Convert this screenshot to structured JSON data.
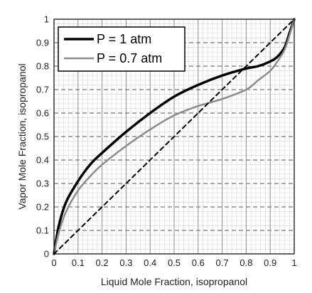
{
  "chart_data": {
    "type": "line",
    "xlabel": "Liquid Mole Fraction, isopropanol",
    "ylabel": "Vapor Mole Fraction, isopropanol",
    "xlim": [
      0,
      1
    ],
    "ylim": [
      0,
      1
    ],
    "x_ticks": [
      "0",
      "0.1",
      "0.2",
      "0.3",
      "0.4",
      "0.5",
      "0.6",
      "0.7",
      "0.8",
      "0.9",
      "1"
    ],
    "y_ticks": [
      "0",
      "0.1",
      "0.2",
      "0.3",
      "0.4",
      "0.5",
      "0.6",
      "0.7",
      "0.8",
      "0.9",
      "1"
    ],
    "grid": true,
    "legend_position": "top-left",
    "series": [
      {
        "name": "P = 1 atm",
        "color": "#000000",
        "x": [
          0,
          0.02,
          0.05,
          0.1,
          0.15,
          0.2,
          0.3,
          0.4,
          0.5,
          0.6,
          0.7,
          0.8,
          0.85,
          0.9,
          0.93,
          0.96,
          0.98,
          1.0
        ],
        "y": [
          0,
          0.12,
          0.22,
          0.31,
          0.38,
          0.43,
          0.52,
          0.6,
          0.67,
          0.72,
          0.76,
          0.79,
          0.8,
          0.82,
          0.84,
          0.88,
          0.94,
          1.0
        ]
      },
      {
        "name": "P = 0.7 atm",
        "color": "#8c8c8c",
        "x": [
          0,
          0.02,
          0.05,
          0.1,
          0.15,
          0.2,
          0.3,
          0.4,
          0.5,
          0.6,
          0.7,
          0.8,
          0.85,
          0.9,
          0.93,
          0.96,
          0.98,
          1.0
        ],
        "y": [
          0,
          0.09,
          0.18,
          0.27,
          0.33,
          0.38,
          0.46,
          0.53,
          0.59,
          0.63,
          0.66,
          0.7,
          0.74,
          0.78,
          0.82,
          0.87,
          0.93,
          1.0
        ]
      },
      {
        "name": "",
        "color": "#000000",
        "dashed": true,
        "x": [
          0,
          1
        ],
        "y": [
          0,
          1
        ]
      }
    ]
  }
}
